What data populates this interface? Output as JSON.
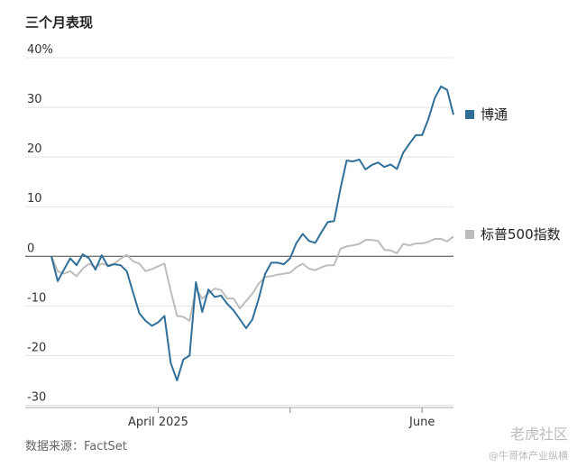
{
  "chart_data": {
    "type": "line",
    "title": "三个月表现",
    "source": "数据来源：FactSet",
    "watermark": [
      "老虎社区",
      "@牛哥体产业纵横"
    ],
    "xlim": [
      0,
      64
    ],
    "xticks": [
      {
        "value": 17,
        "label": "April 2025"
      },
      {
        "value": 38
      },
      {
        "value": 59,
        "label": "June"
      }
    ],
    "ylim": [
      -31,
      40
    ],
    "yticks": [
      {
        "value": 40,
        "label": "40%"
      },
      30,
      20,
      10,
      0,
      -10,
      -20,
      -30
    ],
    "grid": true,
    "series": [
      {
        "name": "博通",
        "color": "#2f6f9a",
        "values": [
          0,
          -5,
          -2.7,
          -0.4,
          -1.8,
          0.4,
          -0.4,
          -2.7,
          0.2,
          -2,
          -1.6,
          -1.8,
          -3,
          -7.3,
          -11.5,
          -13,
          -14,
          -13.3,
          -12,
          -21.5,
          -25,
          -20.8,
          -20,
          -5.2,
          -11.2,
          -6.7,
          -8.2,
          -7.9,
          -9.6,
          -10.9,
          -12.7,
          -14.5,
          -12.7,
          -8.5,
          -3.6,
          -1.3,
          -1.3,
          -1.6,
          -0.4,
          2.7,
          4.5,
          3.1,
          2.7,
          4.9,
          6.9,
          7.1,
          13.6,
          19.3,
          19.1,
          19.5,
          17.5,
          18.4,
          18.9,
          18,
          18.5,
          17.6,
          20.9,
          22.7,
          24.4,
          24.4,
          27.6,
          31.8,
          34.2,
          33.5,
          28.5
        ]
      },
      {
        "name": "标普500指数",
        "color": "#bdbdbd",
        "values": [
          0,
          -3,
          -3.5,
          -3,
          -4,
          -2.5,
          -1.5,
          -2.2,
          -1.5,
          -1.8,
          -1.5,
          -0.5,
          0.3,
          -1,
          -1.5,
          -3,
          -2.6,
          -2,
          -1.5,
          -7,
          -12,
          -12.2,
          -13,
          -6.5,
          -8.5,
          -7.5,
          -6.5,
          -6.8,
          -8.5,
          -8.5,
          -10.5,
          -9,
          -7.5,
          -5.5,
          -4.2,
          -4,
          -3.7,
          -3.5,
          -3.3,
          -2.2,
          -1.5,
          -2.5,
          -2.8,
          -2.2,
          -1.8,
          -1.8,
          1.5,
          2,
          2.2,
          2.5,
          3.3,
          3.3,
          3.1,
          1.3,
          1.2,
          0.6,
          2.5,
          2.2,
          2.6,
          2.6,
          2.9,
          3.5,
          3.5,
          3,
          4
        ]
      }
    ]
  }
}
